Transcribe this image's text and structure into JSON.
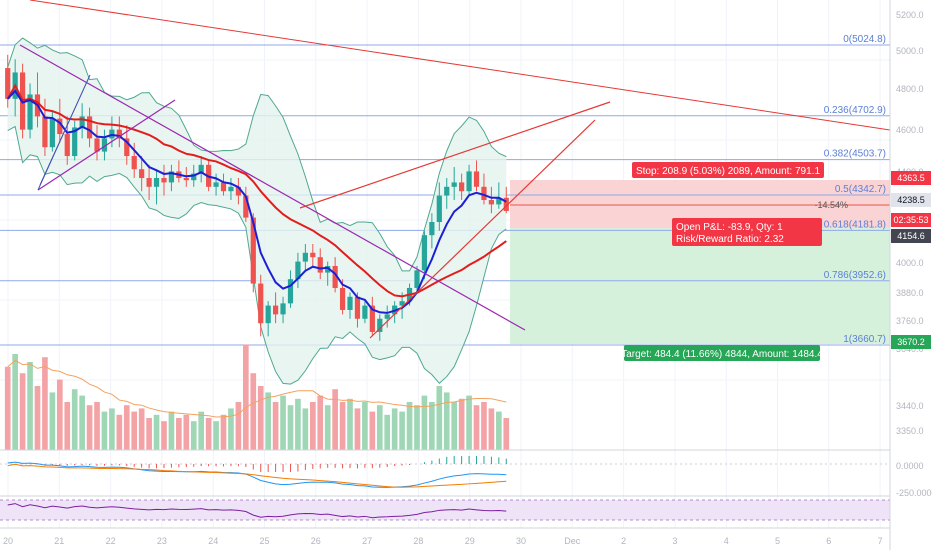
{
  "colors": {
    "bull": "#26a69a",
    "bear": "#ef5350",
    "ema_blue": "#1d1fd6",
    "ma_red": "#e31c1c",
    "bollinger_fill": "#e4f3ee",
    "bollinger_line": "#4fa88f",
    "fib_line": "#8fa9e8",
    "stop_zone": "#f9cfd0",
    "target_zone": "#d1efd7",
    "trend_purple": "#9c27b0",
    "trend_blue": "#3f51b5"
  },
  "price_axis": {
    "ticks": [
      "5200.0",
      "5000.0",
      "4800.0",
      "4600.0",
      "4400.0",
      "4000.0",
      "3880.0",
      "3760.0",
      "3640.0",
      "3440.0",
      "3350.0"
    ],
    "osc_ticks": [
      "0.0000",
      "-250.0000"
    ]
  },
  "price_tags": [
    {
      "text": "4363.5",
      "kind": "red"
    },
    {
      "text": "4238.5",
      "kind": "gray"
    },
    {
      "text": "02:35:53",
      "kind": "red"
    },
    {
      "text": "4154.6",
      "kind": "dark"
    },
    {
      "text": "3670.2",
      "kind": "green"
    }
  ],
  "date_axis": {
    "labels": [
      "20",
      "21",
      "22",
      "23",
      "24",
      "25",
      "26",
      "27",
      "28",
      "29",
      "30",
      "Dec",
      "2",
      "3",
      "4",
      "5",
      "6",
      "7"
    ]
  },
  "fib_levels": [
    {
      "label": "0(5024.8)",
      "value": 5024.8
    },
    {
      "label": "0.236(4702.9)",
      "value": 4702.9
    },
    {
      "label": "0.382(4503.7)",
      "value": 4503.7
    },
    {
      "label": "0.5(4342.7)",
      "value": 4342.7
    },
    {
      "label": "0.618(4181.8)",
      "value": 4181.8
    },
    {
      "label": "0.786(3952.6)",
      "value": 3952.6
    },
    {
      "label": "1(3660.7)",
      "value": 3660.7
    }
  ],
  "position": {
    "stop_label": "Stop: 208.9 (5.03%) 2089, Amount: 791.1",
    "target_label": "Target: 484.4 (11.66%) 4844, Amount: 1484.4",
    "pnl_label": "Open P&L: -83.9, Qty: 1",
    "rr_label": "Risk/Reward Ratio: 2.32",
    "entry_pct": "-14.54%"
  },
  "chart_data": {
    "type": "candlestick",
    "x_labels": [
      "20",
      "21",
      "22",
      "23",
      "24",
      "25",
      "26",
      "27",
      "28",
      "29",
      "30"
    ],
    "candles_ohlc": [
      [
        4920,
        4980,
        4740,
        4780
      ],
      [
        4780,
        4960,
        4700,
        4900
      ],
      [
        4900,
        4940,
        4600,
        4640
      ],
      [
        4640,
        4850,
        4600,
        4800
      ],
      [
        4800,
        4900,
        4650,
        4700
      ],
      [
        4700,
        4780,
        4520,
        4560
      ],
      [
        4560,
        4720,
        4540,
        4690
      ],
      [
        4690,
        4780,
        4580,
        4620
      ],
      [
        4620,
        4700,
        4480,
        4520
      ],
      [
        4520,
        4680,
        4500,
        4650
      ],
      [
        4650,
        4760,
        4600,
        4700
      ],
      [
        4700,
        4740,
        4560,
        4600
      ],
      [
        4600,
        4660,
        4500,
        4540
      ],
      [
        4540,
        4640,
        4500,
        4600
      ],
      [
        4600,
        4700,
        4560,
        4640
      ],
      [
        4640,
        4700,
        4560,
        4600
      ],
      [
        4600,
        4660,
        4480,
        4520
      ],
      [
        4520,
        4580,
        4420,
        4460
      ],
      [
        4460,
        4520,
        4360,
        4420
      ],
      [
        4420,
        4480,
        4320,
        4380
      ],
      [
        4380,
        4460,
        4300,
        4420
      ],
      [
        4420,
        4480,
        4340,
        4400
      ],
      [
        4400,
        4480,
        4360,
        4450
      ],
      [
        4450,
        4500,
        4400,
        4420
      ],
      [
        4420,
        4470,
        4380,
        4410
      ],
      [
        4410,
        4480,
        4380,
        4440
      ],
      [
        4440,
        4520,
        4400,
        4480
      ],
      [
        4480,
        4500,
        4360,
        4380
      ],
      [
        4380,
        4440,
        4340,
        4400
      ],
      [
        4400,
        4440,
        4340,
        4360
      ],
      [
        4360,
        4420,
        4320,
        4380
      ],
      [
        4380,
        4420,
        4300,
        4340
      ],
      [
        4340,
        4380,
        4220,
        4240
      ],
      [
        4240,
        4260,
        3900,
        3940
      ],
      [
        3940,
        3980,
        3700,
        3760
      ],
      [
        3760,
        3860,
        3700,
        3840
      ],
      [
        3840,
        3900,
        3760,
        3800
      ],
      [
        3800,
        3880,
        3760,
        3850
      ],
      [
        3850,
        4000,
        3830,
        3960
      ],
      [
        3960,
        4080,
        3920,
        4040
      ],
      [
        4040,
        4120,
        4000,
        4080
      ],
      [
        4080,
        4120,
        4020,
        4060
      ],
      [
        4060,
        4100,
        3960,
        3990
      ],
      [
        3990,
        4040,
        3930,
        4020
      ],
      [
        4020,
        4060,
        3900,
        3920
      ],
      [
        3920,
        3960,
        3800,
        3820
      ],
      [
        3820,
        3900,
        3780,
        3880
      ],
      [
        3880,
        3900,
        3740,
        3780
      ],
      [
        3780,
        3860,
        3760,
        3840
      ],
      [
        3840,
        3880,
        3700,
        3720
      ],
      [
        3720,
        3800,
        3680,
        3780
      ],
      [
        3780,
        3840,
        3740,
        3800
      ],
      [
        3800,
        3860,
        3760,
        3840
      ],
      [
        3840,
        3900,
        3780,
        3860
      ],
      [
        3860,
        3940,
        3840,
        3920
      ],
      [
        3920,
        4020,
        3900,
        4000
      ],
      [
        4000,
        4180,
        3960,
        4160
      ],
      [
        4160,
        4260,
        4100,
        4220
      ],
      [
        4220,
        4400,
        4180,
        4340
      ],
      [
        4340,
        4420,
        4280,
        4380
      ],
      [
        4380,
        4470,
        4320,
        4400
      ],
      [
        4400,
        4440,
        4320,
        4360
      ],
      [
        4360,
        4480,
        4340,
        4450
      ],
      [
        4450,
        4500,
        4360,
        4380
      ],
      [
        4380,
        4440,
        4300,
        4320
      ],
      [
        4320,
        4380,
        4260,
        4300
      ],
      [
        4300,
        4400,
        4280,
        4330
      ],
      [
        4330,
        4380,
        4260,
        4270
      ]
    ],
    "volume": [
      52,
      60,
      48,
      55,
      40,
      58,
      36,
      44,
      30,
      38,
      34,
      28,
      30,
      24,
      26,
      22,
      28,
      24,
      26,
      20,
      22,
      18,
      24,
      20,
      22,
      18,
      24,
      20,
      18,
      22,
      26,
      30,
      66,
      48,
      40,
      36,
      30,
      34,
      28,
      32,
      26,
      30,
      34,
      28,
      38,
      30,
      32,
      26,
      30,
      24,
      28,
      22,
      26,
      24,
      30,
      28,
      34,
      30,
      40,
      36,
      30,
      32,
      34,
      28,
      30,
      26,
      24,
      20
    ],
    "ylim": [
      3280,
      5260
    ]
  }
}
